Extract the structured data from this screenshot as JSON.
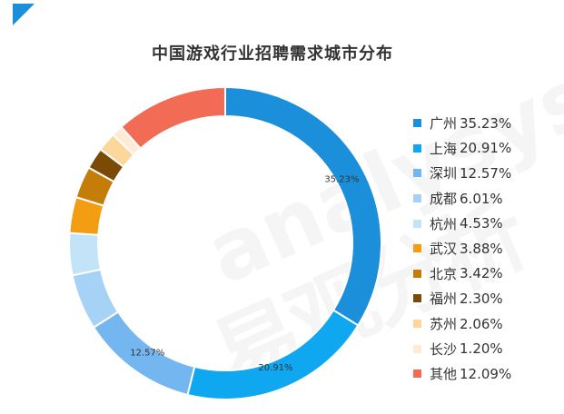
{
  "chart_data": {
    "type": "pie",
    "donut": true,
    "title": "中国游戏行业招聘需求城市分布",
    "categories": [
      "广州",
      "上海",
      "深圳",
      "成都",
      "杭州",
      "武汉",
      "北京",
      "福州",
      "苏州",
      "长沙",
      "其他"
    ],
    "values": [
      35.23,
      20.91,
      12.57,
      6.01,
      4.53,
      3.88,
      3.42,
      2.3,
      2.06,
      1.2,
      12.09
    ],
    "value_labels": [
      "35.23%",
      "20.91%",
      "12.57%",
      "",
      "",
      "",
      "",
      "",
      "",
      "",
      ""
    ],
    "legend": [
      {
        "label": "广州",
        "pct": "35.23%",
        "color": "#1b8fd9"
      },
      {
        "label": "上海",
        "pct": "20.91%",
        "color": "#0fa8f0"
      },
      {
        "label": "深圳",
        "pct": "12.57%",
        "color": "#74b6ef"
      },
      {
        "label": "成都",
        "pct": "6.01%",
        "color": "#a6d2f5"
      },
      {
        "label": "杭州",
        "pct": "4.53%",
        "color": "#c3e4f8"
      },
      {
        "label": "武汉",
        "pct": "3.88%",
        "color": "#f29d12"
      },
      {
        "label": "北京",
        "pct": "3.42%",
        "color": "#c57d0a"
      },
      {
        "label": "福州",
        "pct": "2.30%",
        "color": "#7a4a06"
      },
      {
        "label": "苏州",
        "pct": "2.06%",
        "color": "#fbd79c"
      },
      {
        "label": "长沙",
        "pct": "1.20%",
        "color": "#fdebd6"
      },
      {
        "label": "其他",
        "pct": "12.09%",
        "color": "#f26b55"
      }
    ],
    "legend_position": "right"
  },
  "accent_color": "#1b8fd9"
}
